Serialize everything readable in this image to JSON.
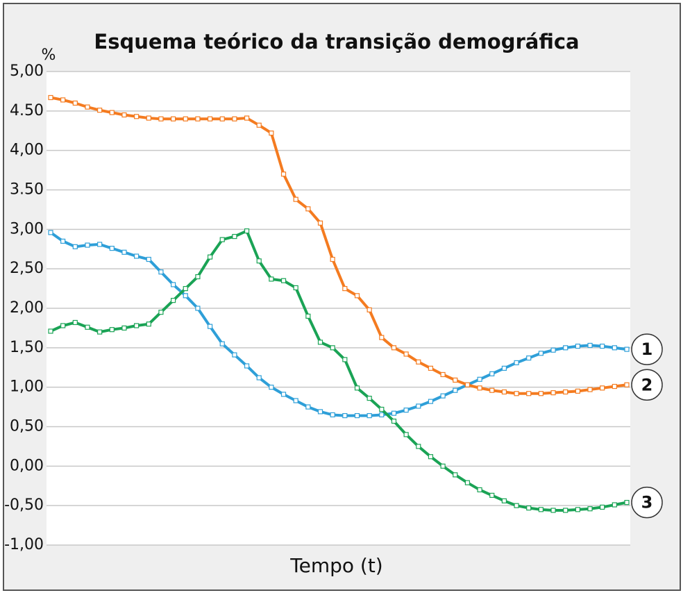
{
  "chart_data": {
    "type": "line",
    "title": "Esquema teórico da transição demográfica",
    "y_label": "%",
    "x_label": "Tempo (t)",
    "categories": [
      null,
      null,
      null,
      null,
      null,
      null,
      null,
      null,
      null,
      null,
      null,
      null,
      null,
      null,
      null,
      null,
      null,
      null,
      null,
      null,
      null,
      null,
      null,
      null,
      null,
      null,
      null,
      null,
      null,
      null,
      null,
      null,
      null,
      null,
      null,
      null,
      null,
      null,
      null,
      null,
      null,
      null,
      null,
      null,
      null,
      null,
      null,
      null
    ],
    "ylim": [
      -1,
      5
    ],
    "yticks": [
      {
        "value": -1,
        "label": "-1,00"
      },
      {
        "value": -0.5,
        "label": "-0,50"
      },
      {
        "value": 0,
        "label": "0,00"
      },
      {
        "value": 0.5,
        "label": "0,50"
      },
      {
        "value": 1,
        "label": "1,00"
      },
      {
        "value": 1.5,
        "label": "1,50"
      },
      {
        "value": 2,
        "label": "2,00"
      },
      {
        "value": 2.5,
        "label": "2,50"
      },
      {
        "value": 3,
        "label": "3,00"
      },
      {
        "value": 3.5,
        "label": "3.50"
      },
      {
        "value": 4,
        "label": "4,00"
      },
      {
        "value": 4.5,
        "label": "4.50"
      },
      {
        "value": 5,
        "label": "5,00"
      }
    ],
    "grid": true,
    "series": [
      {
        "name": "1",
        "color": "#2e9fd8",
        "values": [
          2.96,
          2.85,
          2.78,
          2.8,
          2.81,
          2.76,
          2.71,
          2.66,
          2.62,
          2.46,
          2.3,
          2.16,
          2.0,
          1.77,
          1.55,
          1.41,
          1.27,
          1.12,
          1.0,
          0.91,
          0.83,
          0.75,
          0.69,
          0.65,
          0.64,
          0.64,
          0.64,
          0.65,
          0.67,
          0.71,
          0.76,
          0.82,
          0.89,
          0.96,
          1.03,
          1.1,
          1.17,
          1.24,
          1.31,
          1.37,
          1.43,
          1.47,
          1.5,
          1.52,
          1.53,
          1.52,
          1.5,
          1.48
        ]
      },
      {
        "name": "2",
        "color": "#f47b20",
        "values": [
          4.67,
          4.64,
          4.6,
          4.55,
          4.51,
          4.48,
          4.45,
          4.43,
          4.41,
          4.4,
          4.4,
          4.4,
          4.4,
          4.4,
          4.4,
          4.4,
          4.41,
          4.32,
          4.22,
          3.7,
          3.38,
          3.26,
          3.08,
          2.62,
          2.25,
          2.16,
          1.98,
          1.63,
          1.5,
          1.42,
          1.32,
          1.24,
          1.16,
          1.09,
          1.03,
          0.99,
          0.96,
          0.94,
          0.92,
          0.92,
          0.92,
          0.93,
          0.94,
          0.95,
          0.97,
          0.99,
          1.01,
          1.03
        ]
      },
      {
        "name": "3",
        "color": "#1aa355",
        "values": [
          1.71,
          1.78,
          1.82,
          1.76,
          1.7,
          1.73,
          1.75,
          1.78,
          1.8,
          1.95,
          2.1,
          2.25,
          2.4,
          2.65,
          2.87,
          2.91,
          2.98,
          2.6,
          2.37,
          2.35,
          2.26,
          1.9,
          1.57,
          1.5,
          1.35,
          0.99,
          0.86,
          0.72,
          0.57,
          0.4,
          0.25,
          0.12,
          0.0,
          -0.11,
          -0.21,
          -0.3,
          -0.37,
          -0.44,
          -0.5,
          -0.53,
          -0.55,
          -0.56,
          -0.56,
          -0.55,
          -0.54,
          -0.52,
          -0.49,
          -0.46
        ]
      }
    ]
  }
}
